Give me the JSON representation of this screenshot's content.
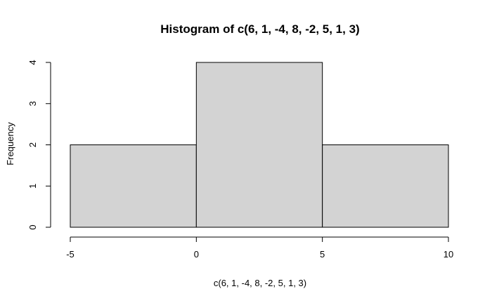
{
  "chart_data": {
    "type": "bar",
    "title": "Histogram of c(6, 1, -4, 8, -2, 5, 1, 3)",
    "xlabel": "c(6, 1, -4, 8, -2, 5, 1, 3)",
    "ylabel": "Frequency",
    "bins": [
      {
        "start": -5,
        "end": 0,
        "count": 2
      },
      {
        "start": 0,
        "end": 5,
        "count": 4
      },
      {
        "start": 5,
        "end": 10,
        "count": 2
      }
    ],
    "x_ticks": [
      -5,
      0,
      5,
      10
    ],
    "y_ticks": [
      0,
      1,
      2,
      3,
      4
    ],
    "xlim": [
      -5,
      10
    ],
    "ylim": [
      0,
      4
    ],
    "grid": false,
    "bar_fill_color": "#d3d3d3",
    "bar_stroke_color": "#000000"
  }
}
